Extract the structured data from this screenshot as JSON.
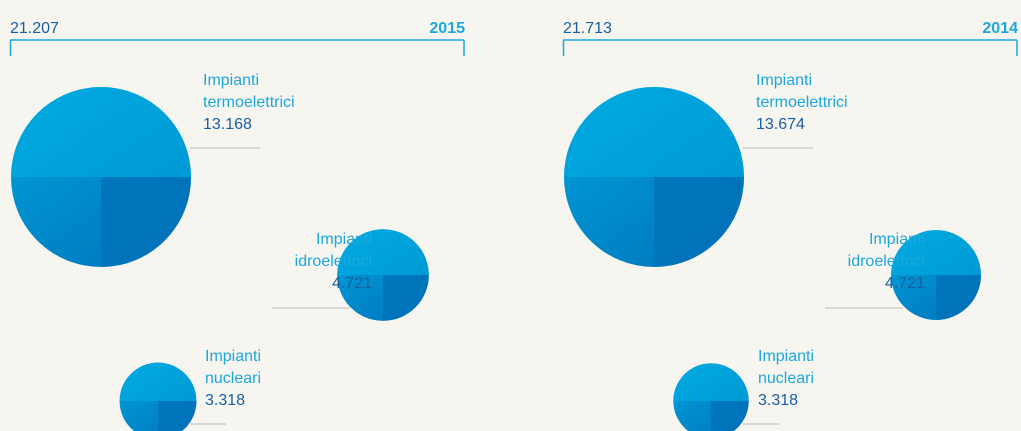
{
  "chart_data": [
    {
      "type": "bubble",
      "title": "2015",
      "total": {
        "value": 21207,
        "label": "21.207"
      },
      "categories": [
        "Impianti termoelettrici",
        "Impianti idroelettrici",
        "Impianti nucleari"
      ],
      "values": [
        13168,
        4721,
        3318
      ],
      "value_labels": [
        "13.168",
        "4.721",
        "3.318"
      ],
      "colors": [
        "#00aee3",
        "#0072b9"
      ]
    },
    {
      "type": "bubble",
      "title": "2014",
      "total": {
        "value": 21713,
        "label": "21.713"
      },
      "categories": [
        "Impianti termoelettrici",
        "Impianti idroelettrici",
        "Impianti nucleari"
      ],
      "values": [
        13674,
        4721,
        3318
      ],
      "value_labels": [
        "13.674",
        "4.721",
        "3.318"
      ],
      "colors": [
        "#00aee3",
        "#0072b9"
      ]
    }
  ]
}
